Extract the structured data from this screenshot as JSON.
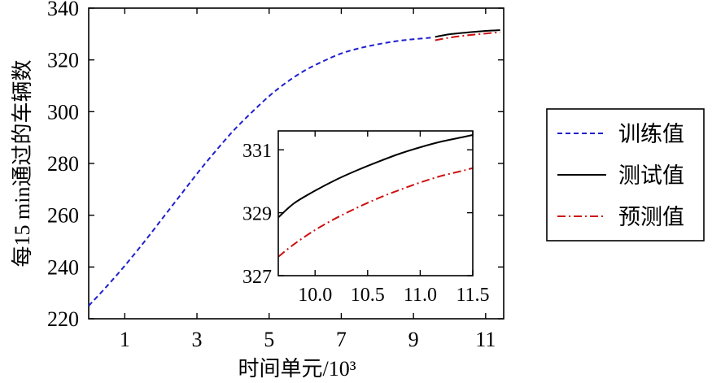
{
  "chart_data": [
    {
      "type": "line",
      "xlabel": "时间单元/10³",
      "ylabel": "每15 min通过的车辆数",
      "xlim": [
        0,
        11.5
      ],
      "ylim": [
        220,
        340
      ],
      "xticks": [
        1,
        3,
        5,
        7,
        9,
        11
      ],
      "yticks": [
        220,
        240,
        260,
        280,
        300,
        320,
        340
      ],
      "xtick_labels": [
        "1",
        "3",
        "5",
        "7",
        "9",
        "11"
      ],
      "ytick_labels": [
        "220",
        "240",
        "260",
        "280",
        "300",
        "320",
        "340"
      ],
      "grid": false,
      "legend_position": "right-outside",
      "series": [
        {
          "name": "训练值",
          "color": "#1f1fd0",
          "style": "dashed",
          "x": [
            0,
            0.5,
            1,
            1.5,
            2,
            2.5,
            3,
            3.5,
            4,
            4.5,
            5,
            5.5,
            6,
            6.5,
            7,
            7.5,
            8,
            8.5,
            9,
            9.5
          ],
          "y": [
            225,
            232.5,
            240.5,
            249,
            258,
            267,
            276,
            284.5,
            292.5,
            299.5,
            306,
            311.5,
            316,
            319.5,
            322.5,
            324.5,
            326,
            327.2,
            328,
            328.6
          ]
        },
        {
          "name": "测试值",
          "color": "#000000",
          "style": "solid",
          "x": [
            9.6,
            10.0,
            10.5,
            11.0,
            11.4
          ],
          "y": [
            328.9,
            329.9,
            330.6,
            331.2,
            331.5
          ]
        },
        {
          "name": "预测值",
          "color": "#cc1111",
          "style": "dashdot",
          "x": [
            9.6,
            10.0,
            10.5,
            11.0,
            11.4
          ],
          "y": [
            327.6,
            328.6,
            329.5,
            330.2,
            330.7
          ]
        }
      ]
    },
    {
      "type": "line",
      "xlim": [
        9.65,
        11.5
      ],
      "ylim": [
        327,
        331.6
      ],
      "xticks": [
        10.0,
        10.5,
        11.0,
        11.5
      ],
      "yticks": [
        327,
        329,
        331
      ],
      "xtick_labels": [
        "10.0",
        "10.5",
        "11.0",
        "11.5"
      ],
      "ytick_labels": [
        "327",
        "329",
        "331"
      ],
      "series": [
        {
          "name": "测试值",
          "color": "#000000",
          "style": "solid",
          "x": [
            9.65,
            9.8,
            10.0,
            10.2,
            10.4,
            10.6,
            10.8,
            11.0,
            11.2,
            11.4,
            11.5
          ],
          "y": [
            328.85,
            329.3,
            329.7,
            330.05,
            330.35,
            330.62,
            330.87,
            331.08,
            331.26,
            331.4,
            331.47
          ]
        },
        {
          "name": "预测值",
          "color": "#cc1111",
          "style": "dashdot",
          "x": [
            9.65,
            9.8,
            10.0,
            10.2,
            10.4,
            10.6,
            10.8,
            11.0,
            11.2,
            11.4,
            11.5
          ],
          "y": [
            327.6,
            328.0,
            328.45,
            328.83,
            329.16,
            329.46,
            329.72,
            329.96,
            330.17,
            330.33,
            330.42
          ]
        }
      ]
    }
  ]
}
